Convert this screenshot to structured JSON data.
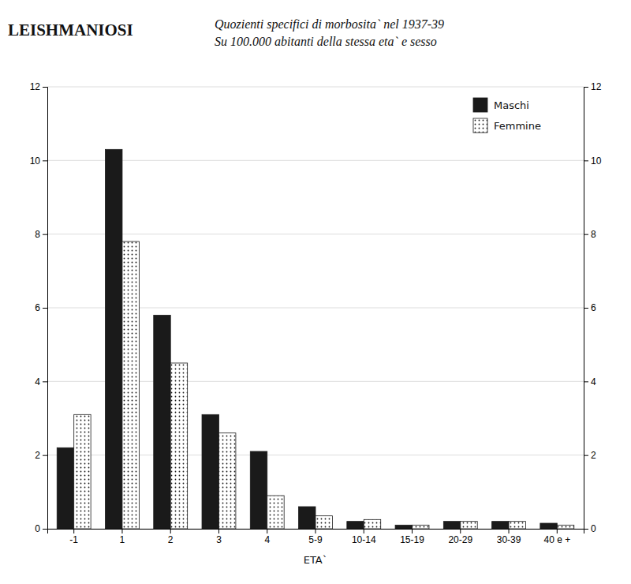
{
  "chart_data": {
    "type": "bar",
    "title": "LEISHMANIOSI",
    "subtitle": [
      "Quozienti specifici di morbosita` nel 1937-39",
      "Su 100.000 abitanti della stessa eta` e sesso"
    ],
    "categories": [
      "-1",
      "1",
      "2",
      "3",
      "4",
      "5-9",
      "10-14",
      "15-19",
      "20-29",
      "30-39",
      "40 e +"
    ],
    "x_label": "ETA`",
    "series": [
      {
        "name": "Maschi",
        "color": "#1a1a1a",
        "values": [
          2.2,
          10.3,
          5.8,
          3.1,
          2.1,
          0.6,
          0.2,
          0.1,
          0.2,
          0.2,
          0.15
        ]
      },
      {
        "name": "Femmine",
        "color": "#ffffff",
        "values": [
          3.1,
          7.8,
          4.5,
          2.6,
          0.9,
          0.35,
          0.25,
          0.1,
          0.2,
          0.2,
          0.1
        ]
      }
    ],
    "ylim": [
      0,
      12
    ],
    "yticks": [
      0,
      2,
      4,
      6,
      8,
      10,
      12
    ],
    "y2lim": [
      0,
      12
    ],
    "y2ticks": [
      0,
      2,
      4,
      6,
      8,
      10,
      12
    ],
    "grid": true,
    "legend": "upper right"
  }
}
